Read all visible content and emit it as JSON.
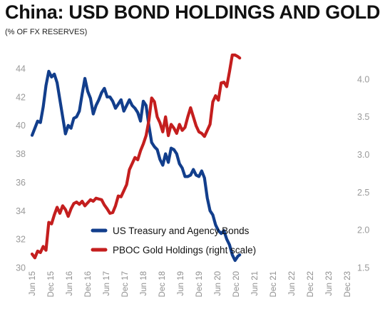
{
  "header": {
    "title": "China: USD BOND HOLDINGS AND GOLD",
    "subtitle": "(% OF FX RESERVES)"
  },
  "colors": {
    "us_bonds": "#123e8c",
    "gold": "#c41e1e"
  },
  "chart_data": {
    "type": "line",
    "grid": false,
    "legend_placement": "bottom-center",
    "y_left": {
      "ticks": [
        30,
        32,
        34,
        36,
        38,
        40,
        42,
        44
      ],
      "range": [
        30,
        45
      ]
    },
    "y_right": {
      "ticks": [
        1.5,
        2.0,
        2.5,
        3.0,
        3.5,
        4.0
      ],
      "range": [
        1.5,
        4.33
      ]
    },
    "x_tick_labels": [
      "Jun 15",
      "Dec 15",
      "Jun 16",
      "Dec 16",
      "Jun 17",
      "Dec 17",
      "Jun 18",
      "Dec 18",
      "Jun 19",
      "Dec 19",
      "Jun 20",
      "Dec 20",
      "Jun 21",
      "Dec 21",
      "Jun 22",
      "Dec 22",
      "Jun 23",
      "Dec 23"
    ],
    "series": [
      {
        "name": "US Treasury and Agency Bonds",
        "axis": "left",
        "points": [
          [
            0,
            39.3
          ],
          [
            0.3,
            39.8
          ],
          [
            0.6,
            40.3
          ],
          [
            0.9,
            40.2
          ],
          [
            1.2,
            41.3
          ],
          [
            1.5,
            42.8
          ],
          [
            1.8,
            43.8
          ],
          [
            2.1,
            43.4
          ],
          [
            2.4,
            43.6
          ],
          [
            2.7,
            43.0
          ],
          [
            3.0,
            41.8
          ],
          [
            3.3,
            40.6
          ],
          [
            3.6,
            39.4
          ],
          [
            3.9,
            40.0
          ],
          [
            4.2,
            39.8
          ],
          [
            4.5,
            40.5
          ],
          [
            4.8,
            40.6
          ],
          [
            5.1,
            41.0
          ],
          [
            5.4,
            42.2
          ],
          [
            5.7,
            43.3
          ],
          [
            6.0,
            42.4
          ],
          [
            6.3,
            41.9
          ],
          [
            6.6,
            40.8
          ],
          [
            6.9,
            41.4
          ],
          [
            7.2,
            41.8
          ],
          [
            7.5,
            42.3
          ],
          [
            7.8,
            42.6
          ],
          [
            8.1,
            42.0
          ],
          [
            8.4,
            42.0
          ],
          [
            8.7,
            41.7
          ],
          [
            9.0,
            41.2
          ],
          [
            9.3,
            41.5
          ],
          [
            9.6,
            41.8
          ],
          [
            9.9,
            41.0
          ],
          [
            10.2,
            41.4
          ],
          [
            10.5,
            41.8
          ],
          [
            10.8,
            41.4
          ],
          [
            11.1,
            41.2
          ],
          [
            11.4,
            40.9
          ],
          [
            11.7,
            40.3
          ],
          [
            12.0,
            41.7
          ],
          [
            12.3,
            41.4
          ],
          [
            12.6,
            40.0
          ],
          [
            12.9,
            38.8
          ],
          [
            13.2,
            38.5
          ],
          [
            13.5,
            38.3
          ],
          [
            13.8,
            37.6
          ],
          [
            14.1,
            37.2
          ],
          [
            14.4,
            38.0
          ],
          [
            14.7,
            37.4
          ],
          [
            15.0,
            38.4
          ],
          [
            15.3,
            38.3
          ],
          [
            15.6,
            38.0
          ],
          [
            15.9,
            37.3
          ],
          [
            16.2,
            37.0
          ],
          [
            16.5,
            36.4
          ],
          [
            16.8,
            36.4
          ],
          [
            17.1,
            36.5
          ],
          [
            17.4,
            36.9
          ],
          [
            17.7,
            36.5
          ],
          [
            18.0,
            36.4
          ],
          [
            18.3,
            36.8
          ],
          [
            18.6,
            36.3
          ],
          [
            18.9,
            34.9
          ],
          [
            19.2,
            34.0
          ],
          [
            19.5,
            33.7
          ],
          [
            19.8,
            33.0
          ],
          [
            20.1,
            32.6
          ],
          [
            20.4,
            32.4
          ],
          [
            20.7,
            32.6
          ],
          [
            21.0,
            32.0
          ],
          [
            21.3,
            31.6
          ],
          [
            21.6,
            30.9
          ],
          [
            21.9,
            30.5
          ],
          [
            22.2,
            30.8
          ],
          [
            22.4,
            30.9
          ]
        ]
      },
      {
        "name": "PBOC Gold Holdings (right scale)",
        "axis": "right",
        "points": [
          [
            0,
            1.68
          ],
          [
            0.3,
            1.63
          ],
          [
            0.6,
            1.72
          ],
          [
            0.9,
            1.7
          ],
          [
            1.2,
            1.78
          ],
          [
            1.5,
            1.73
          ],
          [
            1.8,
            2.1
          ],
          [
            2.1,
            2.08
          ],
          [
            2.4,
            2.2
          ],
          [
            2.7,
            2.3
          ],
          [
            3.0,
            2.22
          ],
          [
            3.3,
            2.32
          ],
          [
            3.6,
            2.27
          ],
          [
            3.9,
            2.18
          ],
          [
            4.2,
            2.28
          ],
          [
            4.5,
            2.35
          ],
          [
            4.8,
            2.37
          ],
          [
            5.1,
            2.34
          ],
          [
            5.4,
            2.38
          ],
          [
            5.7,
            2.32
          ],
          [
            6.0,
            2.36
          ],
          [
            6.3,
            2.4
          ],
          [
            6.6,
            2.38
          ],
          [
            6.9,
            2.42
          ],
          [
            7.2,
            2.41
          ],
          [
            7.5,
            2.4
          ],
          [
            7.8,
            2.33
          ],
          [
            8.1,
            2.28
          ],
          [
            8.4,
            2.22
          ],
          [
            8.7,
            2.23
          ],
          [
            9.0,
            2.32
          ],
          [
            9.3,
            2.45
          ],
          [
            9.6,
            2.44
          ],
          [
            9.9,
            2.52
          ],
          [
            10.2,
            2.6
          ],
          [
            10.5,
            2.8
          ],
          [
            10.8,
            2.88
          ],
          [
            11.1,
            2.96
          ],
          [
            11.4,
            2.93
          ],
          [
            11.7,
            3.05
          ],
          [
            12.0,
            3.14
          ],
          [
            12.3,
            3.25
          ],
          [
            12.6,
            3.45
          ],
          [
            12.9,
            3.75
          ],
          [
            13.2,
            3.7
          ],
          [
            13.5,
            3.5
          ],
          [
            13.8,
            3.42
          ],
          [
            14.1,
            3.3
          ],
          [
            14.4,
            3.5
          ],
          [
            14.7,
            3.25
          ],
          [
            15.0,
            3.4
          ],
          [
            15.3,
            3.35
          ],
          [
            15.6,
            3.28
          ],
          [
            15.9,
            3.4
          ],
          [
            16.2,
            3.32
          ],
          [
            16.5,
            3.36
          ],
          [
            16.8,
            3.5
          ],
          [
            17.1,
            3.62
          ],
          [
            17.4,
            3.5
          ],
          [
            17.7,
            3.38
          ],
          [
            18.0,
            3.3
          ],
          [
            18.3,
            3.28
          ],
          [
            18.6,
            3.24
          ],
          [
            18.9,
            3.32
          ],
          [
            19.2,
            3.4
          ],
          [
            19.5,
            3.7
          ],
          [
            19.8,
            3.78
          ],
          [
            20.1,
            3.72
          ],
          [
            20.4,
            3.95
          ],
          [
            20.7,
            3.96
          ],
          [
            21.0,
            3.9
          ],
          [
            21.3,
            4.1
          ],
          [
            21.6,
            4.32
          ],
          [
            21.9,
            4.32
          ],
          [
            22.2,
            4.3
          ],
          [
            22.4,
            4.28
          ]
        ]
      }
    ]
  }
}
